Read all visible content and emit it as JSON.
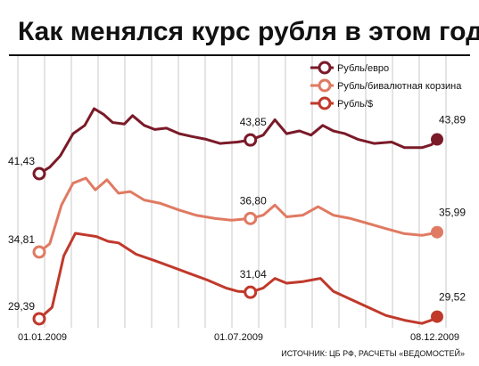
{
  "chart_data": {
    "type": "line",
    "title": "Как менялся курс рубля в этом году",
    "source": "ИСТОЧНИК: ЦБ РФ, РАСЧЕТЫ «ВЕДОМОСТЕЙ»",
    "x_tick_labels": [
      "01.01.2009",
      "01.07.2009",
      "08.12.2009"
    ],
    "grid": "vertical",
    "legend_position": "top-right",
    "series": [
      {
        "name": "Рубль/евро",
        "color": "#7a1a28",
        "points": [
          [
            "2009-01-01",
            41.43
          ],
          [
            "2009-01-10",
            41.9
          ],
          [
            "2009-01-19",
            42.7
          ],
          [
            "2009-01-30",
            44.3
          ],
          [
            "2009-02-09",
            44.9
          ],
          [
            "2009-02-17",
            46.1
          ],
          [
            "2009-02-25",
            45.7
          ],
          [
            "2009-03-05",
            45.1
          ],
          [
            "2009-03-15",
            45.0
          ],
          [
            "2009-03-22",
            45.6
          ],
          [
            "2009-04-01",
            44.9
          ],
          [
            "2009-04-10",
            44.6
          ],
          [
            "2009-04-20",
            44.7
          ],
          [
            "2009-05-01",
            44.3
          ],
          [
            "2009-05-12",
            44.1
          ],
          [
            "2009-05-24",
            43.9
          ],
          [
            "2009-06-05",
            43.6
          ],
          [
            "2009-06-20",
            43.7
          ],
          [
            "2009-07-01",
            43.85
          ],
          [
            "2009-07-12",
            44.2
          ],
          [
            "2009-07-22",
            45.3
          ],
          [
            "2009-08-01",
            44.3
          ],
          [
            "2009-08-12",
            44.5
          ],
          [
            "2009-08-22",
            44.2
          ],
          [
            "2009-09-01",
            44.9
          ],
          [
            "2009-09-10",
            44.5
          ],
          [
            "2009-09-20",
            44.3
          ],
          [
            "2009-10-01",
            43.9
          ],
          [
            "2009-10-15",
            43.6
          ],
          [
            "2009-10-30",
            43.7
          ],
          [
            "2009-11-10",
            43.3
          ],
          [
            "2009-11-25",
            43.3
          ],
          [
            "2009-12-03",
            43.5
          ],
          [
            "2009-12-08",
            43.89
          ]
        ]
      },
      {
        "name": "Рубль/бивалютная корзина",
        "color": "#e07a62",
        "points": [
          [
            "2009-01-01",
            34.81
          ],
          [
            "2009-01-10",
            35.3
          ],
          [
            "2009-01-20",
            37.6
          ],
          [
            "2009-01-30",
            38.9
          ],
          [
            "2009-02-10",
            39.2
          ],
          [
            "2009-02-18",
            38.5
          ],
          [
            "2009-02-28",
            39.1
          ],
          [
            "2009-03-10",
            38.3
          ],
          [
            "2009-03-20",
            38.4
          ],
          [
            "2009-04-01",
            37.9
          ],
          [
            "2009-04-15",
            37.7
          ],
          [
            "2009-05-01",
            37.3
          ],
          [
            "2009-05-15",
            37.0
          ],
          [
            "2009-06-01",
            36.8
          ],
          [
            "2009-06-15",
            36.7
          ],
          [
            "2009-07-01",
            36.8
          ],
          [
            "2009-07-12",
            37.0
          ],
          [
            "2009-07-22",
            37.6
          ],
          [
            "2009-08-01",
            36.9
          ],
          [
            "2009-08-15",
            37.0
          ],
          [
            "2009-08-28",
            37.5
          ],
          [
            "2009-09-10",
            37.0
          ],
          [
            "2009-09-25",
            36.8
          ],
          [
            "2009-10-10",
            36.5
          ],
          [
            "2009-10-25",
            36.2
          ],
          [
            "2009-11-10",
            35.9
          ],
          [
            "2009-11-25",
            35.8
          ],
          [
            "2009-12-03",
            35.9
          ],
          [
            "2009-12-08",
            35.99
          ]
        ]
      },
      {
        "name": "Рубль/$",
        "color": "#c0392b",
        "points": [
          [
            "2009-01-01",
            29.39
          ],
          [
            "2009-01-12",
            30.1
          ],
          [
            "2009-01-22",
            33.3
          ],
          [
            "2009-02-01",
            34.7
          ],
          [
            "2009-02-10",
            34.6
          ],
          [
            "2009-02-19",
            34.5
          ],
          [
            "2009-03-01",
            34.2
          ],
          [
            "2009-03-10",
            34.1
          ],
          [
            "2009-03-25",
            33.4
          ],
          [
            "2009-04-10",
            33.0
          ],
          [
            "2009-04-25",
            32.6
          ],
          [
            "2009-05-10",
            32.2
          ],
          [
            "2009-05-25",
            31.8
          ],
          [
            "2009-06-10",
            31.3
          ],
          [
            "2009-06-20",
            31.1
          ],
          [
            "2009-07-01",
            31.04
          ],
          [
            "2009-07-12",
            31.3
          ],
          [
            "2009-07-22",
            31.9
          ],
          [
            "2009-08-01",
            31.6
          ],
          [
            "2009-08-15",
            31.7
          ],
          [
            "2009-08-30",
            31.9
          ],
          [
            "2009-09-10",
            31.1
          ],
          [
            "2009-09-25",
            30.6
          ],
          [
            "2009-10-10",
            30.1
          ],
          [
            "2009-10-25",
            29.6
          ],
          [
            "2009-11-10",
            29.3
          ],
          [
            "2009-11-25",
            29.1
          ],
          [
            "2009-12-03",
            29.3
          ],
          [
            "2009-12-08",
            29.52
          ]
        ]
      }
    ],
    "value_labels": [
      {
        "series": 0,
        "text": "41,43"
      },
      {
        "series": 0,
        "text": "43,85"
      },
      {
        "series": 0,
        "text": "43,89"
      },
      {
        "series": 1,
        "text": "34,81"
      },
      {
        "series": 1,
        "text": "36,80"
      },
      {
        "series": 1,
        "text": "35,99"
      },
      {
        "series": 2,
        "text": "29,39"
      },
      {
        "series": 2,
        "text": "31,04"
      },
      {
        "series": 2,
        "text": "29,52"
      }
    ]
  }
}
